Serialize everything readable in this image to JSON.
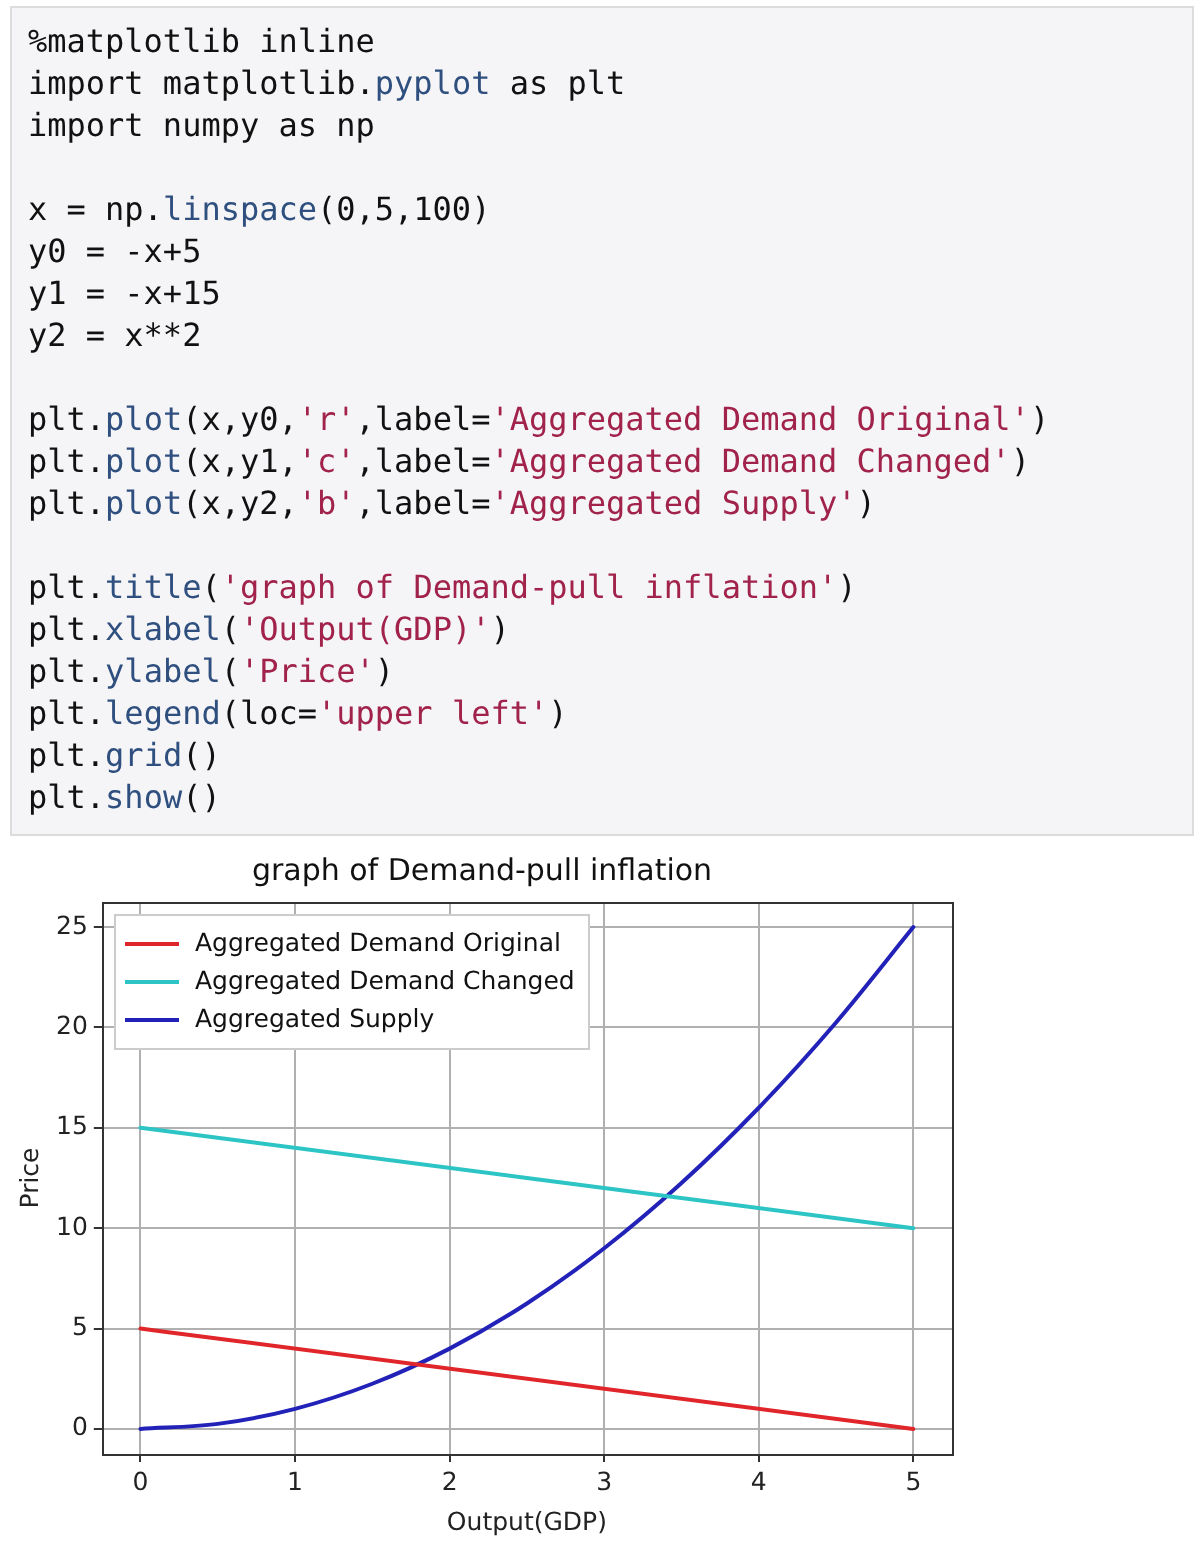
{
  "chart_data": {
    "type": "line",
    "title": "graph of Demand-pull inflation",
    "xlabel": "Output(GDP)",
    "ylabel": "Price",
    "annotations": [
      "%matplotlib inline\nimport matplotlib.pyplot as plt\nimport numpy as np",
      "x = np.linspace(0,5,100)\ny0 = -x+5\ny1 = -x+15\ny2 = x**2",
      "plt.plot(x,y0,'r',label='Aggregated Demand Original')\nplt.plot(x,y1,'c',label='Aggregated Demand Changed')\nplt.plot(x,y2,'b',label='Aggregated Supply')",
      "plt.title('graph of Demand-pull inflation')\nplt.xlabel('Output(GDP)')\nplt.ylabel('Price')\nplt.legend(loc='upper left')\nplt.grid()\nplt.show()"
    ],
    "series": [
      {
        "name": "Aggregated Demand Original",
        "color": "#e0262b",
        "x": [
          0,
          5
        ],
        "values": [
          5,
          0
        ]
      },
      {
        "name": "Aggregated Demand Changed",
        "color": "#2cc4c4",
        "x": [
          0,
          5
        ],
        "values": [
          15,
          10
        ]
      },
      {
        "name": "Aggregated Supply",
        "color": "#2222b8",
        "x": [
          0,
          0.5,
          1,
          1.5,
          2,
          2.5,
          3,
          3.5,
          4,
          4.5,
          5
        ],
        "values": [
          0,
          0.25,
          1,
          2.25,
          4,
          6.25,
          9,
          12.25,
          16,
          20.25,
          25
        ]
      }
    ],
    "xlim": [
      -0.25,
      5.25
    ],
    "ylim": [
      -1.25,
      26.25
    ],
    "xticks": [
      0,
      1,
      2,
      3,
      4,
      5
    ],
    "yticks": [
      0,
      5,
      10,
      15,
      20,
      25
    ],
    "grid": true,
    "legend": "top left"
  }
}
